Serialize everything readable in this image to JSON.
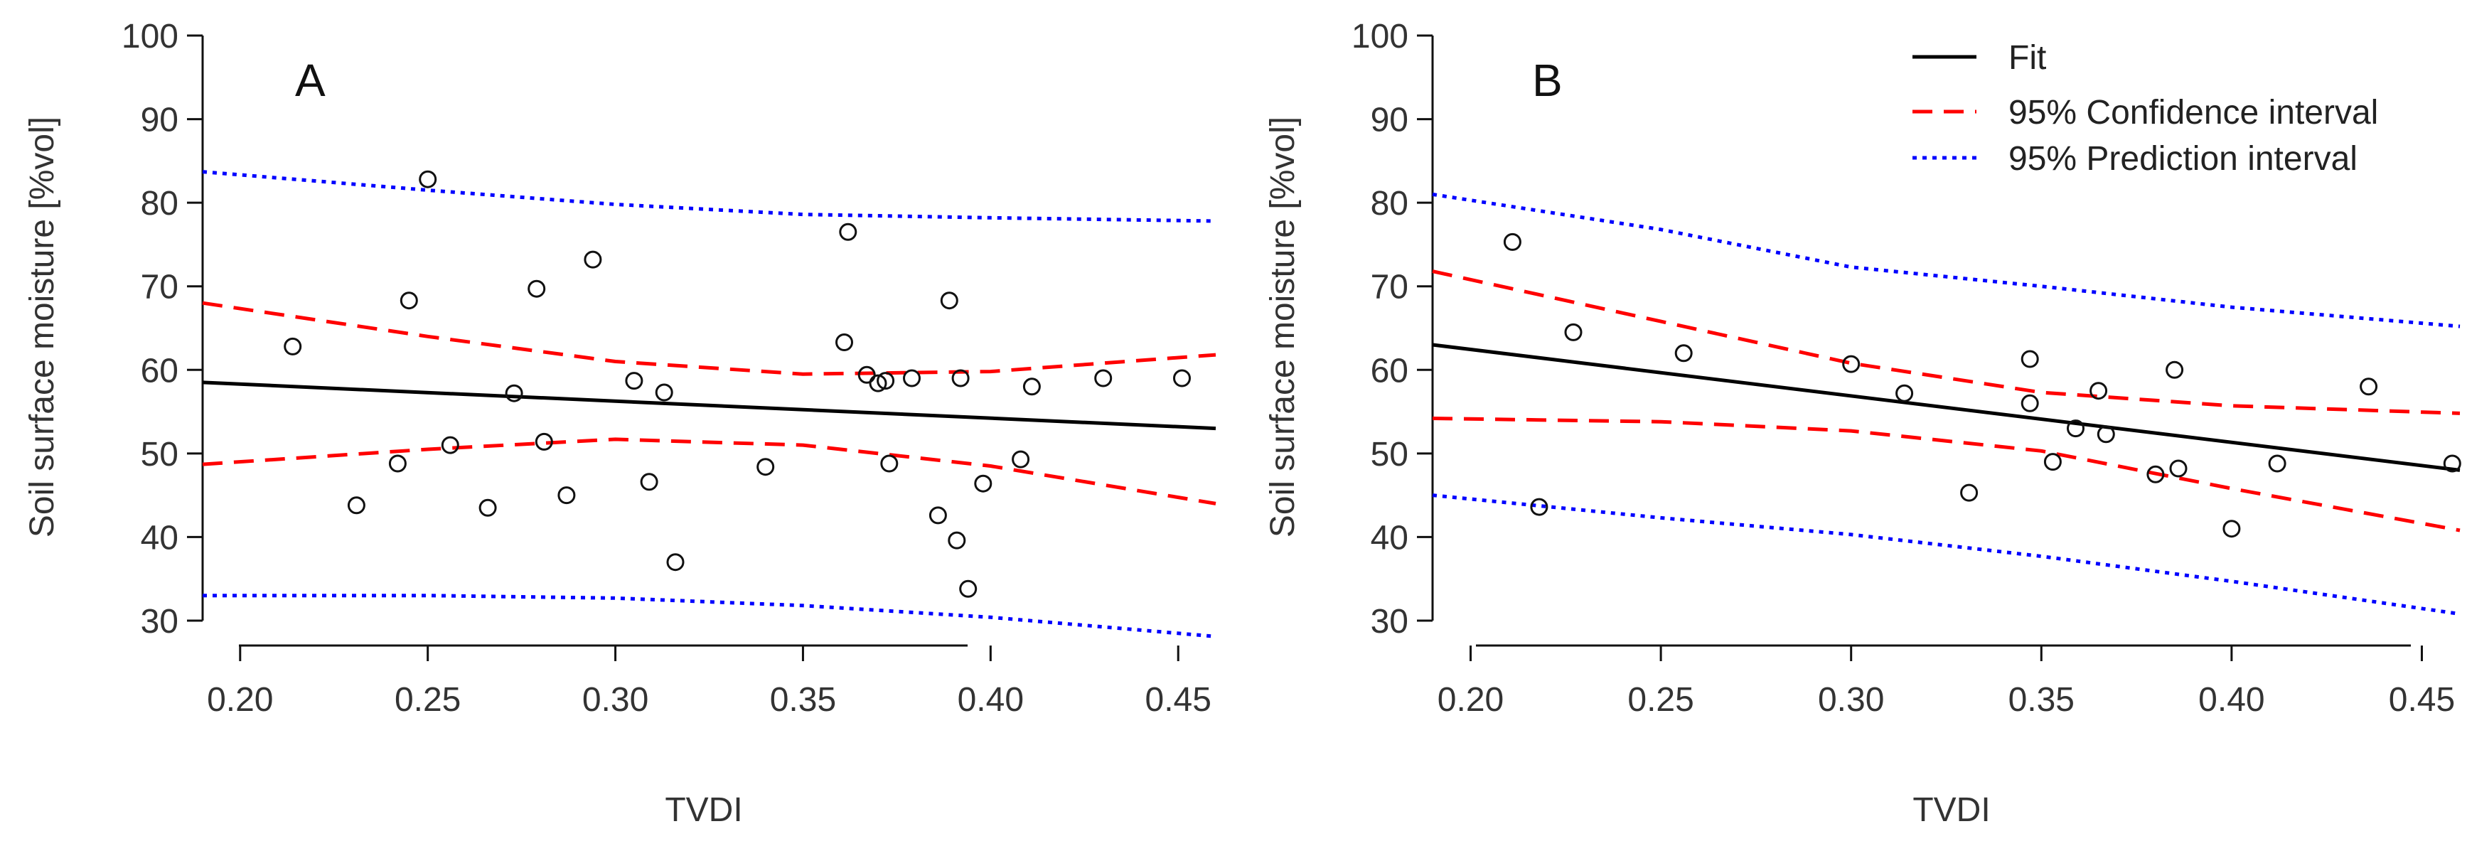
{
  "legend": {
    "items": [
      {
        "label": "Fit",
        "color": "#000000",
        "style": "solid"
      },
      {
        "label": "95% Confidence interval",
        "color": "#ff0000",
        "style": "dashed"
      },
      {
        "label": "95% Prediction interval",
        "color": "#0000ff",
        "style": "dotted"
      }
    ],
    "placement": "top-right of panel B"
  },
  "chart_data": [
    {
      "type": "scatter",
      "panel_label": "A",
      "xlabel": "TVDI",
      "ylabel": "Soil surface moisture [%vol]",
      "xlim": [
        0.19,
        0.46
      ],
      "ylim": [
        30,
        100
      ],
      "xticks": [
        "0.20",
        "0.25",
        "0.30",
        "0.35",
        "0.40",
        "0.45"
      ],
      "yticks": [
        "30",
        "40",
        "50",
        "60",
        "70",
        "80",
        "90",
        "100"
      ],
      "points": {
        "x": [
          0.214,
          0.231,
          0.242,
          0.245,
          0.25,
          0.256,
          0.266,
          0.273,
          0.279,
          0.281,
          0.287,
          0.294,
          0.305,
          0.309,
          0.313,
          0.316,
          0.34,
          0.361,
          0.362,
          0.367,
          0.37,
          0.372,
          0.373,
          0.379,
          0.386,
          0.389,
          0.391,
          0.392,
          0.394,
          0.398,
          0.408,
          0.411,
          0.43,
          0.451
        ],
        "y": [
          62.8,
          43.8,
          48.8,
          68.3,
          82.8,
          51.0,
          43.5,
          57.2,
          69.7,
          51.4,
          45.0,
          73.2,
          58.7,
          46.6,
          57.3,
          37.0,
          48.4,
          63.3,
          76.5,
          59.4,
          58.4,
          58.7,
          48.8,
          59.0,
          42.6,
          68.3,
          39.6,
          59.0,
          33.8,
          46.4,
          49.3,
          58.0,
          59.0,
          59.0
        ]
      },
      "series": [
        {
          "name": "Fit",
          "x": [
            0.19,
            0.46
          ],
          "values": [
            58.5,
            53.0
          ]
        },
        {
          "name": "95% Confidence interval (upper)",
          "x": [
            0.19,
            0.25,
            0.3,
            0.35,
            0.4,
            0.46
          ],
          "values": [
            68.0,
            64.0,
            61.0,
            59.5,
            59.8,
            61.8
          ]
        },
        {
          "name": "95% Confidence interval (lower)",
          "x": [
            0.19,
            0.25,
            0.3,
            0.35,
            0.4,
            0.46
          ],
          "values": [
            48.7,
            50.5,
            51.7,
            51.0,
            48.5,
            44.0
          ]
        },
        {
          "name": "95% Prediction interval (upper)",
          "x": [
            0.19,
            0.25,
            0.3,
            0.35,
            0.4,
            0.46
          ],
          "values": [
            83.7,
            81.5,
            79.8,
            78.6,
            78.2,
            77.8
          ]
        },
        {
          "name": "95% Prediction interval (lower)",
          "x": [
            0.19,
            0.25,
            0.3,
            0.35,
            0.4,
            0.46
          ],
          "values": [
            33.0,
            33.0,
            32.7,
            31.8,
            30.4,
            28.1
          ]
        }
      ]
    },
    {
      "type": "scatter",
      "panel_label": "B",
      "xlabel": "TVDI",
      "ylabel": "Soil surface moisture [%vol]",
      "xlim": [
        0.19,
        0.46
      ],
      "ylim": [
        30,
        100
      ],
      "xticks": [
        "0.20",
        "0.25",
        "0.30",
        "0.35",
        "0.40",
        "0.45"
      ],
      "yticks": [
        "30",
        "40",
        "50",
        "60",
        "70",
        "80",
        "90",
        "100"
      ],
      "points": {
        "x": [
          0.211,
          0.218,
          0.227,
          0.256,
          0.3,
          0.314,
          0.331,
          0.347,
          0.347,
          0.353,
          0.359,
          0.365,
          0.367,
          0.38,
          0.385,
          0.386,
          0.4,
          0.412,
          0.436,
          0.458
        ],
        "y": [
          75.3,
          43.6,
          64.5,
          62.0,
          60.7,
          57.2,
          45.3,
          61.3,
          56.0,
          49.0,
          53.0,
          57.5,
          52.3,
          47.5,
          60.0,
          48.2,
          41.0,
          48.8,
          58.0,
          48.8
        ]
      },
      "series": [
        {
          "name": "Fit",
          "x": [
            0.19,
            0.46
          ],
          "values": [
            63.0,
            48.0
          ]
        },
        {
          "name": "95% Confidence interval (upper)",
          "x": [
            0.19,
            0.25,
            0.3,
            0.35,
            0.4,
            0.46
          ],
          "values": [
            71.8,
            65.8,
            60.8,
            57.3,
            55.7,
            54.8
          ]
        },
        {
          "name": "95% Confidence interval (lower)",
          "x": [
            0.19,
            0.25,
            0.3,
            0.35,
            0.4,
            0.46
          ],
          "values": [
            54.2,
            53.8,
            52.7,
            50.3,
            45.8,
            40.8
          ]
        },
        {
          "name": "95% Prediction interval (upper)",
          "x": [
            0.19,
            0.25,
            0.3,
            0.35,
            0.4,
            0.46
          ],
          "values": [
            81.0,
            76.8,
            72.3,
            70.0,
            67.5,
            65.2
          ]
        },
        {
          "name": "95% Prediction interval (lower)",
          "x": [
            0.19,
            0.25,
            0.3,
            0.35,
            0.4,
            0.46
          ],
          "values": [
            45.0,
            42.3,
            40.3,
            37.7,
            34.7,
            30.8
          ]
        }
      ]
    }
  ]
}
